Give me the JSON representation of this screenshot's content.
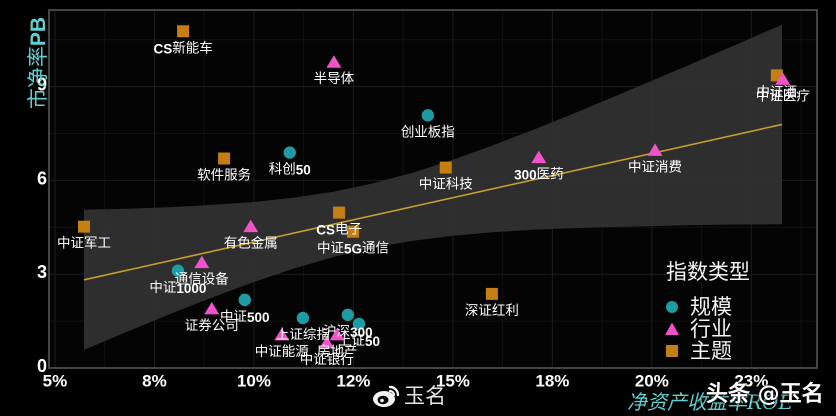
{
  "chart_data": {
    "type": "scatter",
    "title": "",
    "xlabel": "净资产收益率ROE",
    "ylabel": "市净率PB",
    "xlim": [
      4.85,
      24.15
    ],
    "ylim": [
      0,
      11.45
    ],
    "x_ticks": [
      5,
      7.5,
      10,
      12.5,
      15,
      17.5,
      20,
      22.5
    ],
    "x_tick_labels": [
      "5%",
      "8%",
      "10%",
      "12%",
      "15%",
      "18%",
      "20%",
      "23%"
    ],
    "x_minor_ticks": [
      6.25,
      8.75,
      11.25,
      13.75,
      16.25,
      18.75,
      21.25,
      23.75
    ],
    "y_ticks": [
      0,
      3,
      6,
      9
    ],
    "y_tick_labels": [
      "0",
      "3",
      "6",
      "9"
    ],
    "y_minor_ticks": [
      1.5,
      4.5,
      7.5,
      10.5
    ],
    "grid": true,
    "legend": {
      "title": "指数类型",
      "position": "lower right",
      "entries": [
        {
          "label": "规模",
          "marker": "circle",
          "color": "#1d9da3"
        },
        {
          "label": "行业",
          "marker": "triangle",
          "color": "#f052c9"
        },
        {
          "label": "主题",
          "marker": "square",
          "color": "#c47f13"
        }
      ]
    },
    "series": [
      {
        "name": "主题",
        "marker": "square",
        "color": "#c47f13",
        "points": [
          {
            "label": "CS新能车",
            "x": 8.22,
            "y": 10.77
          },
          {
            "label": "中证酒",
            "x": 23.14,
            "y": 9.36
          },
          {
            "label": "软件服务",
            "x": 9.25,
            "y": 6.7
          },
          {
            "label": "中证科技",
            "x": 14.82,
            "y": 6.41
          },
          {
            "label": "中证军工",
            "x": 5.73,
            "y": 4.52
          },
          {
            "label": "CS电子",
            "x": 12.14,
            "y": 4.97
          },
          {
            "label": "中证5G通信",
            "x": 12.49,
            "y": 4.36
          },
          {
            "label": "深证红利",
            "x": 15.98,
            "y": 2.37
          }
        ]
      },
      {
        "name": "规模",
        "marker": "circle",
        "color": "#1d9da3",
        "points": [
          {
            "label": "创业板指",
            "x": 14.37,
            "y": 8.08
          },
          {
            "label": "科创50",
            "x": 10.9,
            "y": 6.89
          },
          {
            "label": "中证1000",
            "x": 8.09,
            "y": 3.11
          },
          {
            "label": "中证500",
            "x": 9.77,
            "y": 2.18
          },
          {
            "label": "上证综指",
            "x": 11.23,
            "y": 1.6
          },
          {
            "label": "沪深300",
            "x": 12.36,
            "y": 1.7
          },
          {
            "label": "上证50",
            "x": 12.64,
            "y": 1.41
          }
        ]
      },
      {
        "name": "行业",
        "marker": "triangle",
        "color": "#f052c9",
        "points": [
          {
            "label": "半导体",
            "x": 12.01,
            "y": 9.78
          },
          {
            "label": "中证医疗",
            "x": 23.29,
            "y": 9.23
          },
          {
            "label": "300医药",
            "x": 17.16,
            "y": 6.73
          },
          {
            "label": "中证消费",
            "x": 20.08,
            "y": 6.96
          },
          {
            "label": "有色金属",
            "x": 9.92,
            "y": 4.52
          },
          {
            "label": "通信设备",
            "x": 8.69,
            "y": 3.37
          },
          {
            "label": "证券公司",
            "x": 8.94,
            "y": 1.89
          },
          {
            "label": "中证能源",
            "x": 10.7,
            "y": 1.06
          },
          {
            "label": "房地产",
            "x": 12.09,
            "y": 1.06
          },
          {
            "label": "中证银行",
            "x": 11.83,
            "y": 0.8
          }
        ]
      }
    ],
    "fit": {
      "type": "linear",
      "slope": 0.2834,
      "intercept": 1.196,
      "x_range": [
        5.73,
        23.27
      ],
      "color": "#c89d2e"
    },
    "confidence_band": {
      "color": "#333333",
      "x": [
        5.73,
        7,
        8,
        9,
        10,
        11,
        12,
        13,
        14,
        15,
        16,
        17,
        18,
        19,
        20,
        21,
        22,
        23.27
      ],
      "lower": [
        0.58,
        1.26,
        1.78,
        2.28,
        2.75,
        3.18,
        3.55,
        3.85,
        4.07,
        4.23,
        4.34,
        4.42,
        4.47,
        4.51,
        4.54,
        4.57,
        4.59,
        4.6
      ],
      "upper": [
        5.06,
        5.1,
        5.15,
        5.22,
        5.31,
        5.45,
        5.64,
        5.91,
        6.25,
        6.66,
        7.12,
        7.61,
        8.12,
        8.65,
        9.19,
        9.73,
        10.28,
        10.98
      ]
    }
  },
  "watermarks": {
    "weibo": {
      "icon": "weibo-icon",
      "text": "玉名"
    },
    "toutiao": {
      "text": "头条 @玉名"
    }
  }
}
